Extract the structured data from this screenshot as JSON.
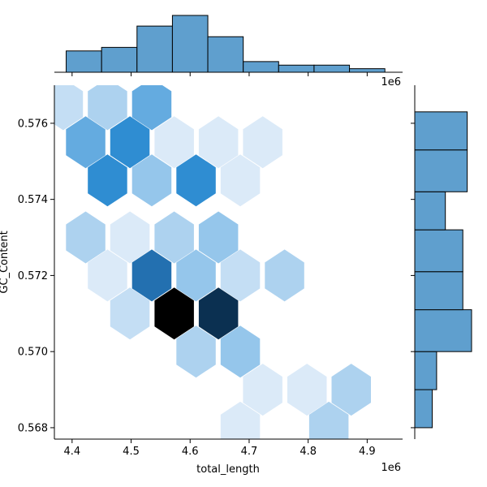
{
  "chart_data": {
    "type": "heatmap",
    "subtype": "hexbin-jointplot",
    "xlabel": "total_length",
    "ylabel": "GC_Content",
    "x_offset_text": "1e6",
    "xlim": [
      4.37,
      4.96
    ],
    "ylim": [
      0.5677,
      0.577
    ],
    "x_ticks": [
      4.4,
      4.5,
      4.6,
      4.7,
      4.8,
      4.9
    ],
    "y_ticks": [
      0.568,
      0.57,
      0.572,
      0.574,
      0.576
    ],
    "x_tick_labels": [
      "4.4",
      "4.5",
      "4.6",
      "4.7",
      "4.8",
      "4.9"
    ],
    "y_tick_labels": [
      "0.568",
      "0.570",
      "0.572",
      "0.574",
      "0.576"
    ],
    "hexbins": [
      {
        "x": 4.385,
        "y": 0.5765,
        "count": 2
      },
      {
        "x": 4.46,
        "y": 0.5765,
        "count": 3
      },
      {
        "x": 4.535,
        "y": 0.5765,
        "count": 5
      },
      {
        "x": 4.423,
        "y": 0.5755,
        "count": 5
      },
      {
        "x": 4.498,
        "y": 0.5755,
        "count": 6
      },
      {
        "x": 4.573,
        "y": 0.5755,
        "count": 1
      },
      {
        "x": 4.648,
        "y": 0.5755,
        "count": 1
      },
      {
        "x": 4.723,
        "y": 0.5755,
        "count": 1
      },
      {
        "x": 4.46,
        "y": 0.5745,
        "count": 6
      },
      {
        "x": 4.535,
        "y": 0.5745,
        "count": 4
      },
      {
        "x": 4.61,
        "y": 0.5745,
        "count": 6
      },
      {
        "x": 4.685,
        "y": 0.5745,
        "count": 1
      },
      {
        "x": 4.423,
        "y": 0.573,
        "count": 3
      },
      {
        "x": 4.498,
        "y": 0.573,
        "count": 1
      },
      {
        "x": 4.573,
        "y": 0.573,
        "count": 3
      },
      {
        "x": 4.648,
        "y": 0.573,
        "count": 4
      },
      {
        "x": 4.46,
        "y": 0.572,
        "count": 1
      },
      {
        "x": 4.535,
        "y": 0.572,
        "count": 7
      },
      {
        "x": 4.61,
        "y": 0.572,
        "count": 4
      },
      {
        "x": 4.685,
        "y": 0.572,
        "count": 2
      },
      {
        "x": 4.76,
        "y": 0.572,
        "count": 3
      },
      {
        "x": 4.498,
        "y": 0.571,
        "count": 2
      },
      {
        "x": 4.573,
        "y": 0.571,
        "count": 10
      },
      {
        "x": 4.648,
        "y": 0.571,
        "count": 9
      },
      {
        "x": 4.61,
        "y": 0.57,
        "count": 3
      },
      {
        "x": 4.685,
        "y": 0.57,
        "count": 4
      },
      {
        "x": 4.723,
        "y": 0.569,
        "count": 1
      },
      {
        "x": 4.798,
        "y": 0.569,
        "count": 1
      },
      {
        "x": 4.873,
        "y": 0.569,
        "count": 3
      },
      {
        "x": 4.685,
        "y": 0.568,
        "count": 1
      },
      {
        "x": 4.835,
        "y": 0.568,
        "count": 3
      }
    ],
    "x_marginal_hist": {
      "bins": [
        4.39,
        4.45,
        4.51,
        4.57,
        4.63,
        4.69,
        4.75,
        4.81,
        4.87,
        4.93
      ],
      "counts": [
        6,
        7,
        13,
        16,
        10,
        3,
        2,
        2,
        1
      ]
    },
    "y_marginal_hist": {
      "bins": [
        0.568,
        0.569,
        0.57,
        0.5711,
        0.5721,
        0.5732,
        0.5742,
        0.5753,
        0.5763
      ],
      "counts": [
        4,
        5,
        13,
        11,
        11,
        7,
        12,
        12
      ]
    },
    "colors": {
      "hist_fill": "#5f9fce",
      "hex_low": "#dbeaf8",
      "hex_high": "#000000"
    },
    "grid": false,
    "legend": "none"
  }
}
